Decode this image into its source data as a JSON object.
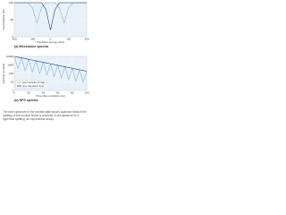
{
  "chart_data": [
    {
      "type": "line",
      "title": "(a) Mössbauer spectra",
      "xlabel": "Transition energy (neV)",
      "ylabel": "Transmission (%)",
      "x": [
        -200,
        -175,
        -150,
        -125,
        -100,
        -75,
        -50,
        -25,
        0,
        25,
        50,
        75,
        100,
        125,
        150,
        175,
        200
      ],
      "series": [
        {
          "color": "#7fb8e0",
          "values": [
            100,
            100,
            100,
            100,
            85,
            40,
            85,
            100,
            100,
            100,
            85,
            40,
            85,
            100,
            100,
            100,
            100
          ]
        },
        {
          "color": "#1f3f8f",
          "values": [
            100,
            100,
            100,
            100,
            100,
            100,
            100,
            80,
            20,
            80,
            100,
            100,
            100,
            100,
            100,
            100,
            100
          ]
        }
      ],
      "xlim": [
        -200,
        200
      ],
      "xticks": [
        -200,
        -100,
        0,
        100,
        200
      ],
      "ylim": [
        0,
        100
      ],
      "yticks": [
        0,
        50,
        100
      ],
      "log_y": false
    },
    {
      "type": "line",
      "title": "(b) NFS spectra",
      "xlabel": "Time after excitation (ns)",
      "ylabel": "Intensity (counts)",
      "x": [
        0,
        5,
        10,
        15,
        20,
        25,
        30,
        35,
        40,
        45,
        50,
        55,
        60,
        65,
        70,
        75,
        80,
        85,
        90,
        95,
        100
      ],
      "series": [
        {
          "name": "two transition lines",
          "color": "#7fb8e0",
          "values": [
            10000,
            400,
            6703,
            220,
            4493,
            150,
            3012,
            100,
            2019,
            66,
            1353,
            44,
            907,
            30,
            608,
            20,
            408,
            13,
            273,
            9,
            183
          ]
        },
        {
          "name": "one transition line",
          "color": "#1f3f8f",
          "values": [
            10000,
            8187,
            6703,
            5488,
            4493,
            3679,
            3012,
            2466,
            2019,
            1653,
            1353,
            1108,
            907,
            743,
            608,
            498,
            408,
            334,
            273,
            224,
            183
          ]
        }
      ],
      "xlim": [
        0,
        100
      ],
      "xticks": [
        0,
        20,
        40,
        60,
        80,
        100
      ],
      "ylim": [
        1,
        10000
      ],
      "yticks": [
        1,
        10,
        100,
        1000,
        10000
      ],
      "log_y": true,
      "legend": "lower left"
    }
  ],
  "caption": "The time spectrum of the excited state shows quantum beats if the splitting of the nuclear levels is resolved, in the absence of a hyperfine splitting, an exponential decay."
}
